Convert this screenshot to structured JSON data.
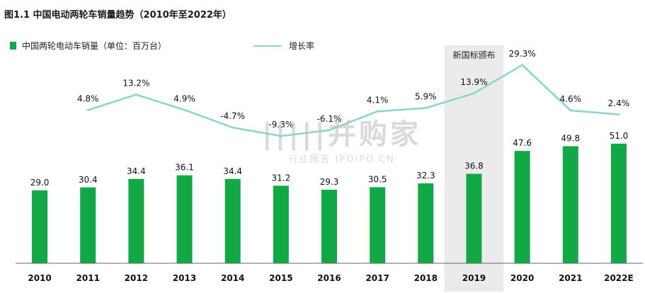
{
  "title": "图1.1  中国电动两轮车销量趋势（2010年至2022年）",
  "legend": {
    "bar_label": "中国两轮电动车销量（单位：百万台）",
    "line_label": "增长率"
  },
  "annotation": "新国标颁布",
  "watermark": {
    "main": "|||||并购家",
    "sub": "行业报告 IPOIPO.CN"
  },
  "colors": {
    "bar": "#11a845",
    "line": "#8cd3cc",
    "highlight": "#ebebeb",
    "axis": "#666666"
  },
  "chart_data": {
    "type": "bar",
    "title": "图1.1  中国电动两轮车销量趋势（2010年至2022年）",
    "xlabel": "",
    "ylabel": "",
    "categories": [
      "2010",
      "2011",
      "2012",
      "2013",
      "2014",
      "2015",
      "2016",
      "2017",
      "2018",
      "2019",
      "2020",
      "2021",
      "2022E"
    ],
    "series": [
      {
        "name": "中国两轮电动车销量（单位：百万台）",
        "type": "bar",
        "values": [
          29.0,
          30.4,
          34.4,
          36.1,
          34.4,
          31.2,
          29.3,
          30.5,
          32.3,
          36.8,
          47.6,
          49.8,
          51.0
        ],
        "labels": [
          "29.0",
          "30.4",
          "34.4",
          "36.1",
          "34.4",
          "31.2",
          "29.3",
          "30.5",
          "32.3",
          "36.8",
          "47.6",
          "49.8",
          "51.0"
        ]
      },
      {
        "name": "增长率",
        "type": "line",
        "values": [
          null,
          4.8,
          13.2,
          4.9,
          -4.7,
          -9.3,
          -6.1,
          4.1,
          5.9,
          13.9,
          29.3,
          4.6,
          2.4
        ],
        "labels": [
          "",
          "4.8%",
          "13.2%",
          "4.9%",
          "-4.7%",
          "-9.3%",
          "-6.1%",
          "4.1%",
          "5.9%",
          "13.9%",
          "29.3%",
          "4.6%",
          "2.4%"
        ]
      }
    ],
    "highlight_category": "2019",
    "legend_position": "top-left",
    "grid": false
  }
}
